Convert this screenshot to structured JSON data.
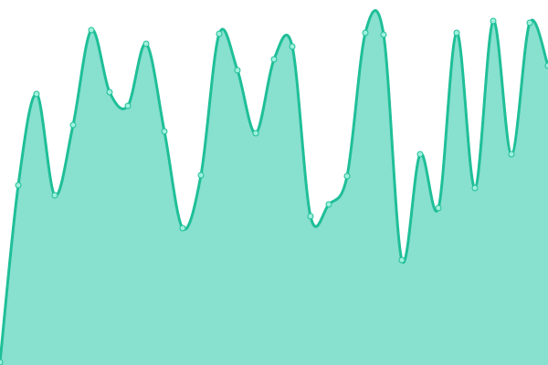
{
  "chart_data": {
    "type": "area",
    "title": "",
    "xlabel": "",
    "ylabel": "",
    "x": [
      0,
      1,
      2,
      3,
      4,
      5,
      6,
      7,
      8,
      9,
      10,
      11,
      12,
      13,
      14,
      15,
      16,
      17,
      18,
      19,
      20,
      21,
      22,
      23,
      24,
      25,
      26,
      27,
      28,
      29,
      30
    ],
    "values": [
      3,
      197,
      297,
      186,
      263,
      367,
      299,
      284,
      352,
      256,
      150,
      208,
      363,
      323,
      254,
      335,
      349,
      163,
      176,
      207,
      364,
      362,
      115,
      231,
      172,
      364,
      194,
      377,
      231,
      375,
      328
    ],
    "ylim": [
      0,
      400
    ],
    "xlim": [
      0,
      30
    ],
    "grid": false,
    "legend": "none",
    "colors": {
      "fill": "#88e0cf",
      "line": "#1fbf98",
      "marker_fill": "#9ff0dc"
    }
  }
}
